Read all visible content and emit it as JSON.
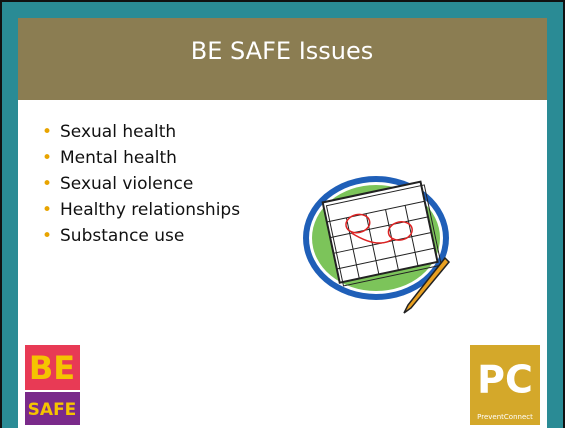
{
  "header": {
    "title": "BE SAFE Issues"
  },
  "bullets": [
    "Sexual health",
    "Mental health",
    "Sexual violence",
    "Healthy relationships",
    "Substance use"
  ],
  "logos": {
    "left": {
      "top": "BE",
      "bottom": "SAFE"
    },
    "right": {
      "mark": "PC",
      "name": "PreventConnect"
    }
  }
}
